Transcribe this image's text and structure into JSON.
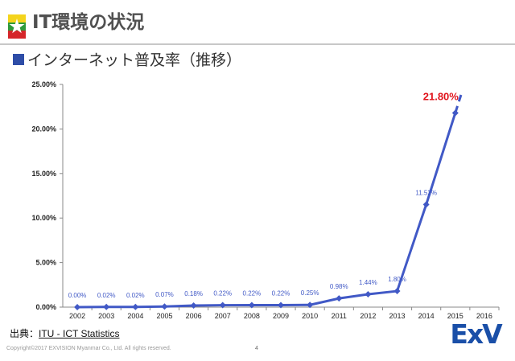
{
  "header": {
    "title": "IT環境の状況",
    "subtitle": "インターネット普及率（推移）"
  },
  "footer": {
    "source_prefix": "出典：",
    "source_link": "ITU - ICT Statistics",
    "copyright": "Copyright©2017 EXVISION Myanmar Co., Ltd. All rights reserved.",
    "page_number": "4",
    "logo_text": "ExV"
  },
  "colors": {
    "series": "#4159c6",
    "highlight_label": "#e0121a",
    "flag_yellow": "#f4d41c",
    "flag_green": "#2f9a3a",
    "flag_red": "#d5262a"
  },
  "chart_data": {
    "type": "line",
    "title": "",
    "xlabel": "",
    "ylabel": "",
    "categories": [
      "2002",
      "2003",
      "2004",
      "2005",
      "2006",
      "2007",
      "2008",
      "2009",
      "2010",
      "2011",
      "2012",
      "2013",
      "2014",
      "2015",
      "2016"
    ],
    "series": [
      {
        "values": [
          0.0,
          0.02,
          0.02,
          0.07,
          0.18,
          0.22,
          0.22,
          0.22,
          0.25,
          0.98,
          1.44,
          1.8,
          11.52,
          21.8,
          null
        ],
        "labels": [
          "0.00%",
          "0.02%",
          "0.02%",
          "0.07%",
          "0.18%",
          "0.22%",
          "0.22%",
          "0.22%",
          "0.25%",
          "0.98%",
          "1.44%",
          "1.80%",
          "11.52%",
          "21.80%",
          ""
        ],
        "projection": {
          "from": "2015",
          "to": "2016",
          "style": "dashed"
        }
      }
    ],
    "highlight": {
      "category": "2015",
      "label": "21.80%"
    },
    "y_ticks": [
      "0.00%",
      "5.00%",
      "10.00%",
      "15.00%",
      "20.00%",
      "25.00%"
    ],
    "ylim": [
      0,
      25
    ],
    "grid": false,
    "legend": "none"
  }
}
